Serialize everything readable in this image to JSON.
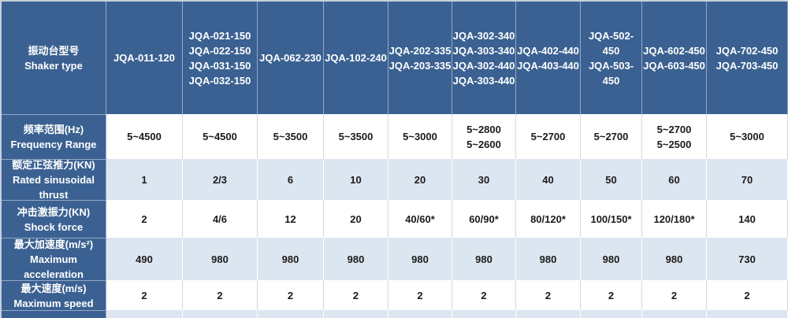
{
  "table": {
    "colors": {
      "header_bg": "#3A6191",
      "alt_row_bg": "#DCE6F1",
      "white_row_bg": "#FFFFFF",
      "header_text": "#FFFFFF",
      "value_text": "#1B1B1B"
    },
    "header": {
      "label_zh": "振动台型号",
      "label_en": "Shaker type",
      "columns": [
        [
          "JQA-011-120"
        ],
        [
          "JQA-021-150",
          "JQA-022-150",
          "JQA-031-150",
          "JQA-032-150"
        ],
        [
          "JQA-062-230"
        ],
        [
          "JQA-102-240"
        ],
        [
          "JQA-202-335",
          "JQA-203-335"
        ],
        [
          "JQA-302-340",
          "JQA-303-340",
          "JQA-302-440",
          "JQA-303-440"
        ],
        [
          "JQA-402-440",
          "JQA-403-440"
        ],
        [
          "JQA-502-450",
          "JQA-503-450"
        ],
        [
          "JQA-602-450",
          "JQA-603-450"
        ],
        [
          "JQA-702-450",
          "JQA-703-450"
        ]
      ]
    },
    "rows": [
      {
        "label_zh": "频率范围(Hz)",
        "label_en": "Frequency Range",
        "values": [
          [
            "5~4500"
          ],
          [
            "5~4500"
          ],
          [
            "5~3500"
          ],
          [
            "5~3500"
          ],
          [
            "5~3000"
          ],
          [
            "5~2800",
            "5~2600"
          ],
          [
            "5~2700"
          ],
          [
            "5~2700"
          ],
          [
            "5~2700",
            "5~2500"
          ],
          [
            "5~3000"
          ]
        ]
      },
      {
        "label_zh": "额定正弦推力(KN)",
        "label_en": "Rated sinusoidal thrust",
        "values": [
          [
            "1"
          ],
          [
            "2/3"
          ],
          [
            "6"
          ],
          [
            "10"
          ],
          [
            "20"
          ],
          [
            "30"
          ],
          [
            "40"
          ],
          [
            "50"
          ],
          [
            "60"
          ],
          [
            "70"
          ]
        ]
      },
      {
        "label_zh": "冲击激振力(KN)",
        "label_en": "Shock force",
        "values": [
          [
            "2"
          ],
          [
            "4/6"
          ],
          [
            "12"
          ],
          [
            "20"
          ],
          [
            "40/60*"
          ],
          [
            "60/90*"
          ],
          [
            "80/120*"
          ],
          [
            "100/150*"
          ],
          [
            "120/180*"
          ],
          [
            "140"
          ]
        ]
      },
      {
        "label_zh": "最大加速度(m/s²)",
        "label_en": "Maximum acceleration",
        "values": [
          [
            "490"
          ],
          [
            "980"
          ],
          [
            "980"
          ],
          [
            "980"
          ],
          [
            "980"
          ],
          [
            "980"
          ],
          [
            "980"
          ],
          [
            "980"
          ],
          [
            "980"
          ],
          [
            "730"
          ]
        ]
      },
      {
        "label_zh": "最大速度(m/s)",
        "label_en": "Maximum speed",
        "values": [
          [
            "2"
          ],
          [
            "2"
          ],
          [
            "2"
          ],
          [
            "2"
          ],
          [
            "2"
          ],
          [
            "2"
          ],
          [
            "2"
          ],
          [
            "2"
          ],
          [
            "2"
          ],
          [
            "2"
          ]
        ]
      }
    ]
  }
}
